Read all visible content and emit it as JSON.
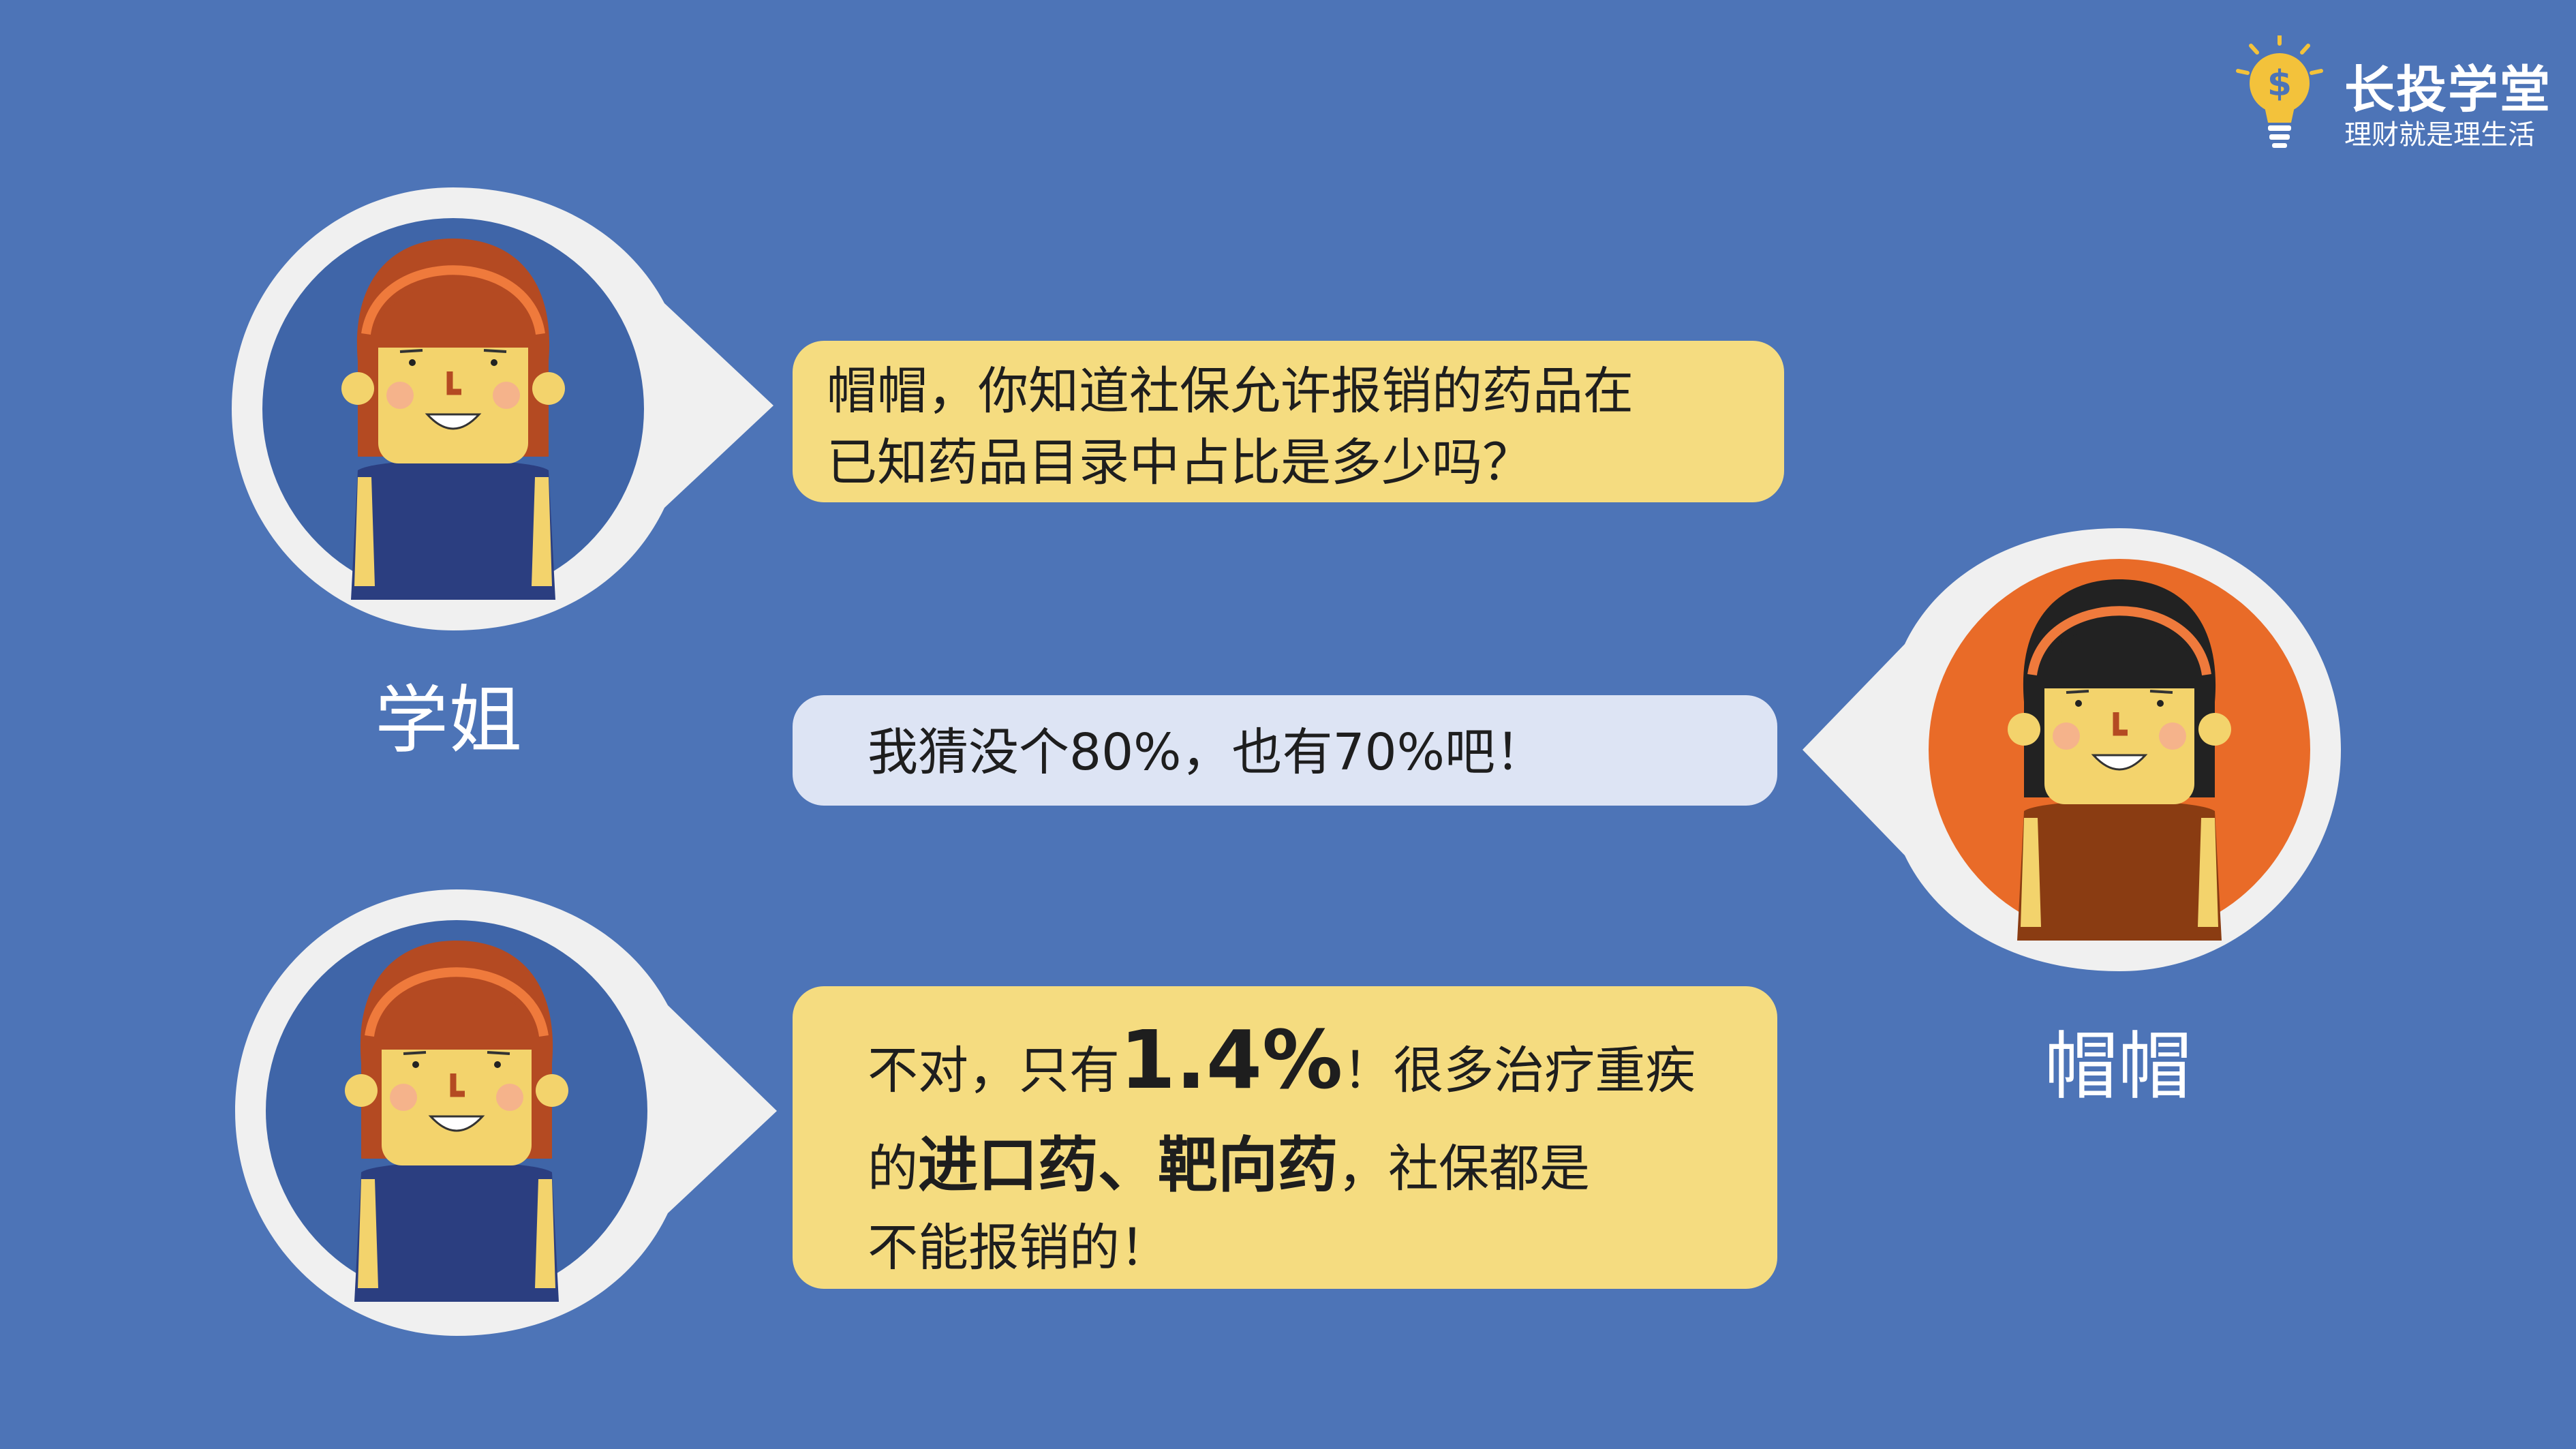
{
  "brand": {
    "title": "长投学堂",
    "subtitle": "理财就是理生活",
    "icon": "lightbulb-dollar-icon"
  },
  "colors": {
    "background": "#4d74b7",
    "bubble_yellow": "#f5dc80",
    "bubble_light": "#dde4f4",
    "avatar_ring": "#f0f0f0",
    "avatar_blue": "#3f65a8",
    "avatar_orange": "#e96b28"
  },
  "characters": {
    "senior": {
      "name": "学姐",
      "icon": "senior-girl-avatar-icon"
    },
    "maomao": {
      "name": "帽帽",
      "icon": "maomao-girl-avatar-icon"
    }
  },
  "dialogue": {
    "q1": {
      "line1": "帽帽，你知道社保允许报销的药品在",
      "line2": "已知药品目录中占比是多少吗？"
    },
    "reply": {
      "text": "我猜没个80%，也有70%吧！"
    },
    "a1": {
      "p1": "不对，只有",
      "p2": "1.4%",
      "p3": "！很多治疗重疾",
      "p4": "的",
      "p5": "进口药、靶向药",
      "p6": "，社保都是",
      "p7": "不能报销的！"
    }
  }
}
